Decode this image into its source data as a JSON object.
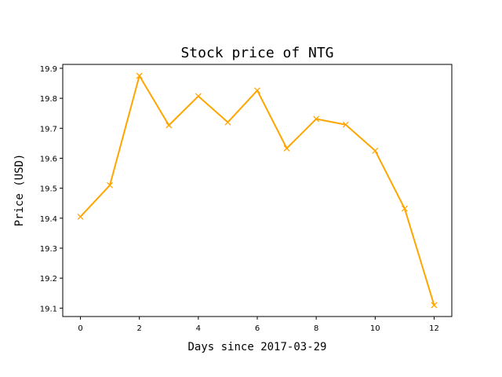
{
  "chart_data": {
    "type": "line",
    "title": "Stock price of NTG",
    "xlabel": "Days since 2017-03-29",
    "ylabel": "Price (USD)",
    "x": [
      0,
      1,
      2,
      3,
      4,
      5,
      6,
      7,
      8,
      9,
      10,
      11,
      12
    ],
    "series": [
      {
        "values": [
          19.405,
          19.51,
          19.875,
          19.71,
          19.807,
          19.72,
          19.826,
          19.633,
          19.731,
          19.712,
          19.625,
          19.432,
          19.11
        ],
        "color": "#ffa500",
        "marker": "x"
      }
    ],
    "xticks": [
      "0",
      "2",
      "4",
      "6",
      "8",
      "10",
      "12"
    ],
    "yticks": [
      "19.1",
      "19.2",
      "19.3",
      "19.4",
      "19.5",
      "19.6",
      "19.7",
      "19.8",
      "19.9"
    ],
    "xlim": [
      -0.6,
      12.6
    ],
    "ylim": [
      19.072,
      19.913
    ],
    "grid": false,
    "legend": "none"
  }
}
